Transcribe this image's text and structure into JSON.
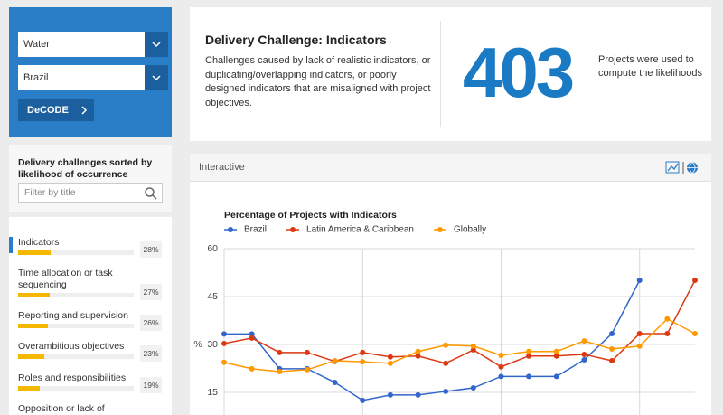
{
  "sidebar": {
    "selects": [
      "Water",
      "Brazil"
    ],
    "button": "DeCODE",
    "heading": "Delivery challenges sorted by likelihood of occurrence",
    "filter_placeholder": "Filter by title",
    "challenges": {
      "xlim": [
        0,
        100
      ],
      "items": [
        {
          "name": "Indicators",
          "value": 28,
          "value_label": "28%"
        },
        {
          "name": "Time allocation or task sequencing",
          "value": 27,
          "value_label": "27%"
        },
        {
          "name": "Reporting and supervision",
          "value": 26,
          "value_label": "26%"
        },
        {
          "name": "Overambitious objectives",
          "value": 23,
          "value_label": "23%"
        },
        {
          "name": "Roles and responsibilities",
          "value": 19,
          "value_label": "19%"
        },
        {
          "name": "Opposition or lack of"
        }
      ]
    }
  },
  "header": {
    "title": "Delivery Challenge: Indicators",
    "description": "Challenges caused by lack of realistic indicators, or duplicating/overlapping indicators, or poorly designed indicators that are misaligned with project objectives.",
    "count": 403,
    "count_caption": "Projects were used to compute the likelihoods"
  },
  "panel": {
    "title": "Interactive"
  },
  "chart_data": {
    "type": "line",
    "title": "Percentage of Projects with Indicators",
    "ylabel": "%",
    "categories": [
      null,
      null,
      null,
      null,
      null,
      null,
      null,
      null,
      null,
      null,
      null,
      null,
      null,
      null,
      null,
      null,
      null,
      null
    ],
    "series": [
      {
        "name": "Brazil",
        "color": "#3366cc",
        "values": [
          33.3,
          33.3,
          22.4,
          22.4,
          18.1,
          12.5,
          14.2,
          14.2,
          15.3,
          16.4,
          20,
          20,
          20,
          25.2,
          33.4,
          50.1,
          null,
          null
        ]
      },
      {
        "name": "Latin America & Caribbean",
        "color": "#dc3912",
        "values": [
          30.3,
          32,
          27.5,
          27.5,
          24.7,
          27.5,
          26.1,
          26.4,
          24.1,
          28.3,
          23,
          26.4,
          26.4,
          26.9,
          24.9,
          33.4,
          33.4,
          50.1
        ]
      },
      {
        "name": "Globally",
        "color": "#ff9900",
        "values": [
          24.4,
          22.4,
          21.5,
          22.1,
          24.9,
          24.6,
          24.1,
          27.8,
          29.8,
          29.5,
          26.6,
          27.8,
          27.8,
          31.1,
          28.6,
          29.5,
          38,
          33.4
        ]
      }
    ],
    "ylim": [
      10,
      60
    ],
    "yticks": [
      15,
      30,
      45,
      60
    ],
    "grid": true,
    "legend": "top"
  }
}
